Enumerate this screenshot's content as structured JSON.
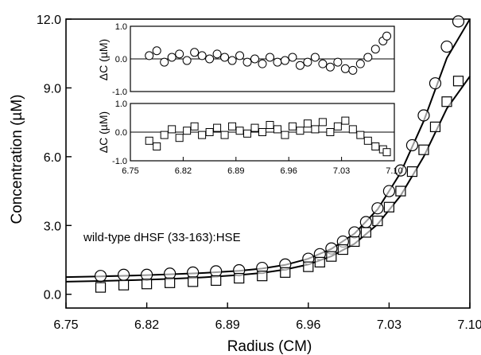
{
  "chart_data": [
    {
      "type": "scatter",
      "xlabel": "Radius (CM)",
      "ylabel": "Concentration (µM)",
      "xlim": [
        6.75,
        7.1
      ],
      "ylim": [
        -0.6,
        12.0
      ],
      "xticks": [
        "6.75",
        "6.82",
        "6.89",
        "6.96",
        "7.03",
        "7.10"
      ],
      "yticks": [
        "0.0",
        "3.0",
        "6.0",
        "9.0",
        "12.0"
      ],
      "annotation": "wild-type dHSF (33-163):HSE",
      "grid": false,
      "series": [
        {
          "marker": "circle",
          "x": [
            6.78,
            6.8,
            6.82,
            6.84,
            6.86,
            6.88,
            6.9,
            6.92,
            6.94,
            6.96,
            6.97,
            6.98,
            6.99,
            7.0,
            7.01,
            7.02,
            7.03,
            7.04,
            7.05,
            7.06,
            7.07,
            7.08,
            7.09
          ],
          "y": [
            0.8,
            0.85,
            0.85,
            0.9,
            0.95,
            1.0,
            1.05,
            1.15,
            1.3,
            1.55,
            1.75,
            2.0,
            2.3,
            2.7,
            3.15,
            3.75,
            4.5,
            5.4,
            6.5,
            7.8,
            9.2,
            10.8,
            11.9
          ]
        },
        {
          "marker": "square",
          "x": [
            6.78,
            6.8,
            6.82,
            6.84,
            6.86,
            6.88,
            6.9,
            6.92,
            6.94,
            6.96,
            6.97,
            6.98,
            6.99,
            7.0,
            7.01,
            7.02,
            7.03,
            7.04,
            7.05,
            7.06,
            7.07,
            7.08,
            7.09
          ],
          "y": [
            0.3,
            0.4,
            0.45,
            0.5,
            0.55,
            0.6,
            0.7,
            0.8,
            0.95,
            1.2,
            1.4,
            1.65,
            1.95,
            2.3,
            2.7,
            3.2,
            3.8,
            4.5,
            5.35,
            6.3,
            7.3,
            8.4,
            9.3
          ]
        }
      ],
      "fits": [
        {
          "x": [
            6.75,
            6.78,
            6.81,
            6.84,
            6.87,
            6.9,
            6.92,
            6.94,
            6.96,
            6.98,
            7.0,
            7.02,
            7.04,
            7.06,
            7.08,
            7.1
          ],
          "y": [
            0.75,
            0.78,
            0.82,
            0.87,
            0.93,
            1.02,
            1.12,
            1.28,
            1.55,
            1.98,
            2.65,
            3.7,
            5.3,
            7.55,
            10.3,
            12.0
          ]
        },
        {
          "x": [
            6.75,
            6.78,
            6.81,
            6.84,
            6.87,
            6.9,
            6.92,
            6.94,
            6.96,
            6.98,
            7.0,
            7.02,
            7.04,
            7.06,
            7.08,
            7.1
          ],
          "y": [
            0.55,
            0.58,
            0.62,
            0.67,
            0.74,
            0.84,
            0.93,
            1.08,
            1.3,
            1.66,
            2.2,
            3.05,
            4.3,
            6.0,
            8.1,
            9.5
          ]
        }
      ]
    },
    {
      "type": "scatter",
      "ylabel": "ΔC (µM)",
      "xlim": [
        6.75,
        7.1
      ],
      "ylim": [
        -1.0,
        1.0
      ],
      "yticks": [
        "-1.0",
        "0.0",
        "1.0"
      ],
      "marker": "circle",
      "x": [
        6.775,
        6.785,
        6.795,
        6.805,
        6.815,
        6.825,
        6.835,
        6.845,
        6.855,
        6.865,
        6.875,
        6.885,
        6.895,
        6.905,
        6.915,
        6.925,
        6.935,
        6.945,
        6.955,
        6.965,
        6.975,
        6.985,
        6.995,
        7.005,
        7.015,
        7.025,
        7.035,
        7.045,
        7.055,
        7.065,
        7.075,
        7.085,
        7.09
      ],
      "y": [
        0.1,
        0.25,
        -0.1,
        0.05,
        0.15,
        -0.05,
        0.2,
        0.1,
        0.0,
        0.15,
        0.05,
        -0.05,
        0.1,
        -0.1,
        0.0,
        -0.15,
        0.05,
        -0.1,
        -0.05,
        0.05,
        -0.2,
        -0.1,
        0.05,
        -0.15,
        -0.25,
        -0.1,
        -0.3,
        -0.35,
        -0.15,
        0.05,
        0.3,
        0.55,
        0.7
      ],
      "zero_line": 0.0
    },
    {
      "type": "scatter",
      "ylabel": "ΔC (µM)",
      "xlim": [
        6.75,
        7.1
      ],
      "ylim": [
        -1.0,
        1.0
      ],
      "xticks": [
        "6.75",
        "6.82",
        "6.89",
        "6.96",
        "7.03",
        "7.10"
      ],
      "yticks": [
        "-1.0",
        "0.0",
        "1.0"
      ],
      "marker": "square",
      "x": [
        6.775,
        6.785,
        6.795,
        6.805,
        6.815,
        6.825,
        6.835,
        6.845,
        6.855,
        6.865,
        6.875,
        6.885,
        6.895,
        6.905,
        6.915,
        6.925,
        6.935,
        6.945,
        6.955,
        6.965,
        6.975,
        6.985,
        6.995,
        7.005,
        7.015,
        7.025,
        7.035,
        7.045,
        7.055,
        7.065,
        7.075,
        7.085,
        7.09
      ],
      "y": [
        -0.3,
        -0.5,
        -0.1,
        0.1,
        -0.2,
        0.05,
        0.2,
        -0.1,
        0.0,
        0.15,
        -0.1,
        0.2,
        0.05,
        -0.05,
        0.15,
        0.0,
        0.25,
        0.1,
        -0.1,
        0.2,
        0.05,
        0.3,
        0.1,
        0.35,
        0.0,
        0.2,
        0.4,
        0.1,
        -0.1,
        -0.3,
        -0.5,
        -0.6,
        -0.7
      ],
      "zero_line": 0.0
    }
  ]
}
